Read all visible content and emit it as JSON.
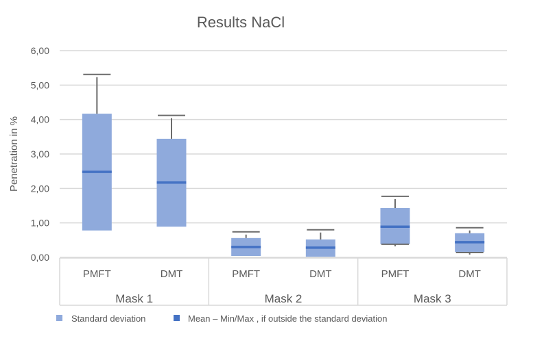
{
  "chart_data": {
    "type": "box",
    "title": "Results NaCl",
    "ylabel": "Penetration in %",
    "ylim": [
      0,
      6
    ],
    "yticks": [
      "0,00",
      "1,00",
      "2,00",
      "3,00",
      "4,00",
      "5,00",
      "6,00"
    ],
    "grid": true,
    "groups": [
      "Mask 1",
      "Mask 2",
      "Mask 3"
    ],
    "categories": [
      "PMFT",
      "DMT",
      "PMFT",
      "DMT",
      "PMFT",
      "DMT"
    ],
    "series": [
      {
        "group": "Mask 1",
        "category": "PMFT",
        "sd_low": 0.78,
        "sd_high": 4.17,
        "mean": 2.48,
        "max": 5.31,
        "min": null
      },
      {
        "group": "Mask 1",
        "category": "DMT",
        "sd_low": 0.89,
        "sd_high": 3.44,
        "mean": 2.17,
        "max": 4.12,
        "min": null
      },
      {
        "group": "Mask 2",
        "category": "PMFT",
        "sd_low": 0.04,
        "sd_high": 0.56,
        "mean": 0.3,
        "max": 0.74,
        "min": null
      },
      {
        "group": "Mask 2",
        "category": "DMT",
        "sd_low": 0.02,
        "sd_high": 0.52,
        "mean": 0.28,
        "max": 0.8,
        "min": null
      },
      {
        "group": "Mask 3",
        "category": "PMFT",
        "sd_low": 0.38,
        "sd_high": 1.43,
        "mean": 0.89,
        "max": 1.77,
        "min": 0.38
      },
      {
        "group": "Mask 3",
        "category": "DMT",
        "sd_low": 0.16,
        "sd_high": 0.7,
        "mean": 0.44,
        "max": 0.86,
        "min": 0.14
      }
    ],
    "legend": {
      "position": "bottom",
      "items": [
        "Standard deviation",
        "Mean – Min/Max , if outside the standard deviation"
      ]
    },
    "colors": {
      "box": "#8FAADC",
      "mean": "#4472C4",
      "whisker": "#6B6B6B",
      "grid": "#D9D9D9"
    }
  }
}
